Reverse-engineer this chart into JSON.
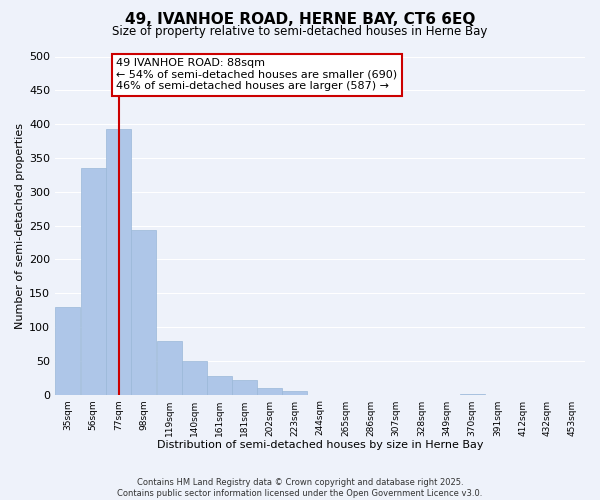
{
  "title": "49, IVANHOE ROAD, HERNE BAY, CT6 6EQ",
  "subtitle": "Size of property relative to semi-detached houses in Herne Bay",
  "xlabel": "Distribution of semi-detached houses by size in Herne Bay",
  "ylabel": "Number of semi-detached properties",
  "bin_labels": [
    "35sqm",
    "56sqm",
    "77sqm",
    "98sqm",
    "119sqm",
    "140sqm",
    "161sqm",
    "181sqm",
    "202sqm",
    "223sqm",
    "244sqm",
    "265sqm",
    "286sqm",
    "307sqm",
    "328sqm",
    "349sqm",
    "370sqm",
    "391sqm",
    "412sqm",
    "432sqm",
    "453sqm"
  ],
  "bin_edges": [
    35,
    56,
    77,
    98,
    119,
    140,
    161,
    181,
    202,
    223,
    244,
    265,
    286,
    307,
    328,
    349,
    370,
    391,
    412,
    432,
    453,
    474
  ],
  "bar_heights": [
    130,
    335,
    393,
    243,
    79,
    50,
    27,
    21,
    10,
    5,
    0,
    0,
    0,
    0,
    0,
    0,
    1,
    0,
    0,
    0,
    0
  ],
  "bar_color": "#aec6e8",
  "bar_edge_color": "#9ab8d8",
  "property_line_x": 88,
  "property_line_color": "#cc0000",
  "ylim": [
    0,
    500
  ],
  "yticks": [
    0,
    50,
    100,
    150,
    200,
    250,
    300,
    350,
    400,
    450,
    500
  ],
  "annotation_title": "49 IVANHOE ROAD: 88sqm",
  "annotation_line1": "← 54% of semi-detached houses are smaller (690)",
  "annotation_line2": "46% of semi-detached houses are larger (587) →",
  "annotation_box_color": "#ffffff",
  "annotation_box_edge": "#cc0000",
  "footnote1": "Contains HM Land Registry data © Crown copyright and database right 2025.",
  "footnote2": "Contains public sector information licensed under the Open Government Licence v3.0.",
  "background_color": "#eef2fa",
  "grid_color": "#ffffff"
}
